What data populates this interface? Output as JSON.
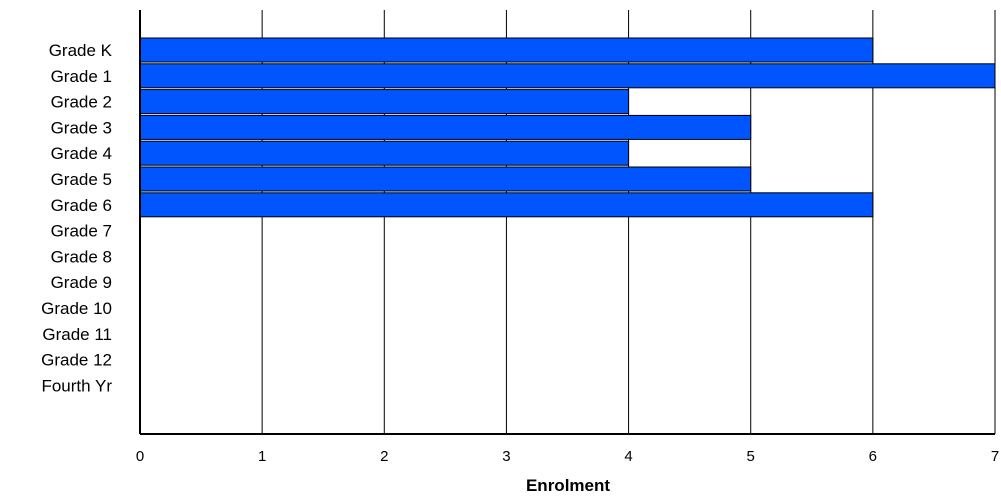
{
  "chart_data": {
    "type": "bar",
    "orientation": "horizontal",
    "title": "",
    "xlabel": "Enrolment",
    "ylabel": "",
    "xlim": [
      0,
      7
    ],
    "xticks": [
      0,
      1,
      2,
      3,
      4,
      5,
      6,
      7
    ],
    "grid": true,
    "legend": "none",
    "categories": [
      "Grade K",
      "Grade 1",
      "Grade 2",
      "Grade 3",
      "Grade 4",
      "Grade 5",
      "Grade 6",
      "Grade 7",
      "Grade 8",
      "Grade 9",
      "Grade 10",
      "Grade 11",
      "Grade 12",
      "Fourth Yr"
    ],
    "values": [
      6,
      7,
      4,
      5,
      4,
      5,
      6,
      0,
      0,
      0,
      0,
      0,
      0,
      0
    ],
    "bar_color": "#0055ff"
  }
}
